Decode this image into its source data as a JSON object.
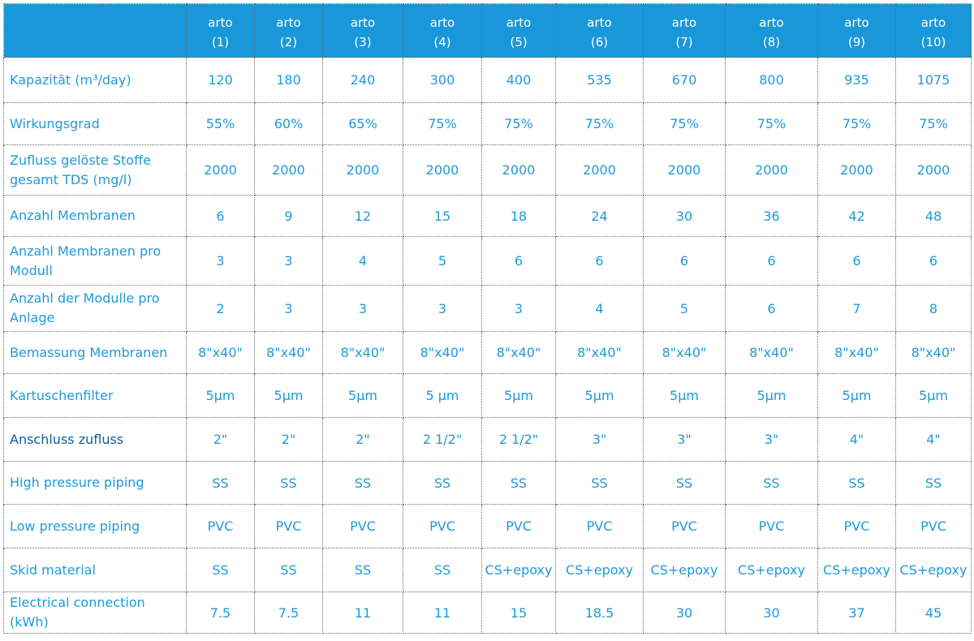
{
  "columns": [
    {
      "name": "arto",
      "num": "(1)"
    },
    {
      "name": "arto",
      "num": "(2)"
    },
    {
      "name": "arto",
      "num": "(3)"
    },
    {
      "name": "arto",
      "num": "(4)"
    },
    {
      "name": "arto",
      "num": "(5)"
    },
    {
      "name": "arto",
      "num": "(6)"
    },
    {
      "name": "arto",
      "num": "(7)"
    },
    {
      "name": "arto",
      "num": "(8)"
    },
    {
      "name": "arto",
      "num": "(9)"
    },
    {
      "name": "arto",
      "num": "(10)"
    }
  ],
  "rows": [
    {
      "label": "Kapazität (m³/day)",
      "values": [
        "120",
        "180",
        "240",
        "300",
        "400",
        "535",
        "670",
        "800",
        "935",
        "1075"
      ]
    },
    {
      "label": "Wirkungsgrad",
      "values": [
        "55%",
        "60%",
        "65%",
        "75%",
        "75%",
        "75%",
        "75%",
        "75%",
        "75%",
        "75%"
      ]
    },
    {
      "label": "Zufluss gelöste Stoffe gesamt  TDS (mg/l)",
      "values": [
        "2000",
        "2000",
        "2000",
        "2000",
        "2000",
        "2000",
        "2000",
        "2000",
        "2000",
        "2000"
      ]
    },
    {
      "label": "Anzahl Membranen",
      "values": [
        "6",
        "9",
        "12",
        "15",
        "18",
        "24",
        "30",
        "36",
        "42",
        "48"
      ]
    },
    {
      "label": "Anzahl Membranen pro Modull",
      "values": [
        "3",
        "3",
        "4",
        "5",
        "6",
        "6",
        "6",
        "6",
        "6",
        "6"
      ]
    },
    {
      "label": "Anzahl der Modulle pro Anlage",
      "values": [
        "2",
        "3",
        "3",
        "3",
        "3",
        "4",
        "5",
        "6",
        "7",
        "8"
      ]
    },
    {
      "label": "Bemassung Membranen",
      "values": [
        "8\"x40\"",
        "8\"x40\"",
        "8\"x40\"",
        "8\"x40\"",
        "8\"x40\"",
        "8\"x40\"",
        "8\"x40\"",
        "8\"x40\"",
        "8\"x40\"",
        "8\"x40\""
      ]
    },
    {
      "label": "Kartuschenfilter",
      "values": [
        "5µm",
        "5µm",
        "5µm",
        "5 µm",
        "5µm",
        "5µm",
        "5µm",
        "5µm",
        "5µm",
        "5µm"
      ]
    },
    {
      "label": "Anschluss zufluss",
      "values": [
        "2\"",
        "2\"",
        "2\"",
        "2 1/2\"",
        "2 1/2\"",
        "3\"",
        "3\"",
        "3\"",
        "4\"",
        "4\""
      ]
    },
    {
      "label": "High pressure piping",
      "values": [
        "SS",
        "SS",
        "SS",
        "SS",
        "SS",
        "SS",
        "SS",
        "SS",
        "SS",
        "SS"
      ]
    },
    {
      "label": "Low pressure piping",
      "values": [
        "PVC",
        "PVC",
        "PVC",
        "PVC",
        "PVC",
        "PVC",
        "PVC",
        "PVC",
        "PVC",
        "PVC"
      ]
    },
    {
      "label": "Skid material",
      "values": [
        "SS",
        "SS",
        "SS",
        "SS",
        "CS+epoxy",
        "CS+epoxy",
        "CS+epoxy",
        "CS+epoxy",
        "CS+epoxy",
        "CS+epoxy"
      ]
    },
    {
      "label": "Electrical connection (kWh)",
      "values": [
        "7.5",
        "7.5",
        "11",
        "11",
        "15",
        "18.5",
        "30",
        "30",
        "37",
        "45"
      ]
    }
  ],
  "colors": {
    "header_bg": "#1a97d8",
    "text": "#1e9ad8",
    "dark_label": "#0d5f9b"
  }
}
